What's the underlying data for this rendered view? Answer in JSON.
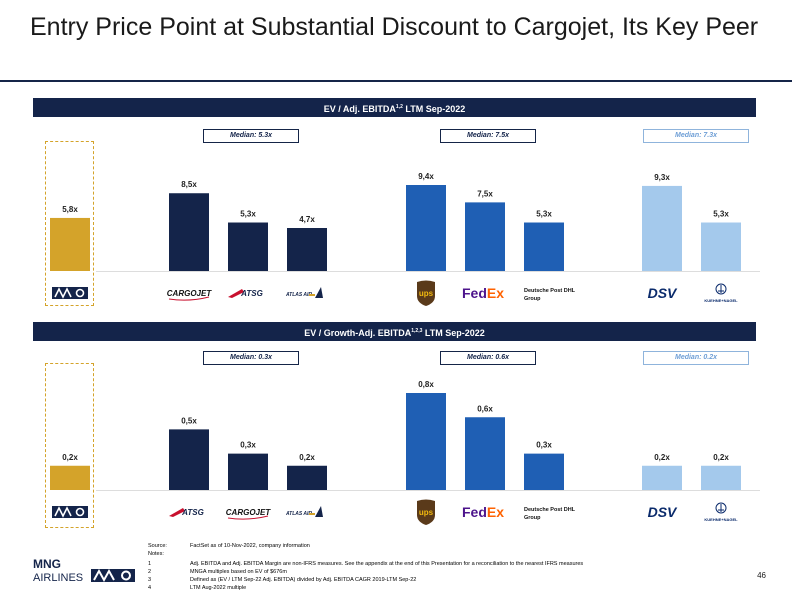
{
  "title": "Entry Price Point at Substantial Discount to Cargojet, Its Key Peer",
  "page_number": "46",
  "colors": {
    "navy": "#14244a",
    "gold": "#d4a32a",
    "blue": "#1f5fb4",
    "light_blue": "#a4c9ec"
  },
  "chart_data": [
    {
      "type": "bar",
      "title": "EV / Adj. EBITDA",
      "title_sup": "1,2",
      "title_suffix": " LTM Sep-2022",
      "medians": [
        "Median: 5.3x",
        "Median: 7.5x",
        "Median: 7.3x"
      ],
      "categories": [
        "MNG",
        "CARGOJET",
        "ATSG",
        "ATLAS AIR",
        "UPS",
        "FedEx",
        "Deutsche Post DHL Group",
        "DSV",
        "KUEHNE+NAGEL"
      ],
      "values": [
        5.8,
        8.5,
        5.3,
        4.7,
        9.4,
        7.5,
        5.3,
        9.3,
        5.3
      ],
      "labels": [
        "5,8x",
        "8,5x",
        "5,3x",
        "4,7x",
        "9,4x",
        "7,5x",
        "5,3x",
        "9,3x",
        "5,3x"
      ],
      "groups": [
        "gold",
        "navy",
        "navy",
        "navy",
        "blue",
        "blue",
        "blue",
        "light_blue",
        "light_blue"
      ]
    },
    {
      "type": "bar",
      "title": "EV / Growth-Adj. EBITDA",
      "title_sup": "1,2,3",
      "title_suffix": " LTM Sep-2022",
      "medians": [
        "Median: 0.3x",
        "Median: 0.6x",
        "Median: 0.2x"
      ],
      "categories": [
        "MNG",
        "ATSG",
        "CARGOJET",
        "ATLAS AIR",
        "UPS",
        "FedEx",
        "Deutsche Post DHL Group",
        "DSV",
        "KUEHNE+NAGEL"
      ],
      "values": [
        0.2,
        0.5,
        0.3,
        0.2,
        0.8,
        0.6,
        0.3,
        0.2,
        0.2
      ],
      "labels": [
        "0,2x",
        "0,5x",
        "0,3x",
        "0,2x",
        "0,8x",
        "0,6x",
        "0,3x",
        "0,2x",
        "0,2x"
      ],
      "groups": [
        "gold",
        "navy",
        "navy",
        "navy",
        "blue",
        "blue",
        "blue",
        "light_blue",
        "light_blue"
      ]
    }
  ],
  "logos": {
    "mng": "MNG",
    "cargojet": "CARGOJET",
    "atsg": "ATSG",
    "atlas": "ATLAS AIR",
    "ups": "ups",
    "fedex_fed": "Fed",
    "fedex_ex": "Ex",
    "dhl_line1": "Deutsche Post DHL",
    "dhl_line2": "Group",
    "dsv": "DSV",
    "kn": "KUEHNE+NAGEL"
  },
  "footer": {
    "source_label": "Source:",
    "source_text": "FactSet as of 10-Nov-2022, company information",
    "notes_label": "Notes:",
    "notes": [
      {
        "num": "1",
        "text": "Adj. EBITDA and Adj. EBITDA Margin are non-IFRS measures. See the appendix at the end of this Presentation for a reconciliation to the nearest IFRS measures"
      },
      {
        "num": "2",
        "text": "MNGA multiples based on EV of $676m"
      },
      {
        "num": "3",
        "text": "Defined as (EV / LTM Sep-22 Adj. EBITDA) divided by Adj. EBITDA CAGR 2019-LTM Sep-22"
      },
      {
        "num": "4",
        "text": "LTM Aug-2022 multiple"
      }
    ]
  },
  "brand": {
    "line1": "MNG",
    "line2": "AIRLINES"
  }
}
